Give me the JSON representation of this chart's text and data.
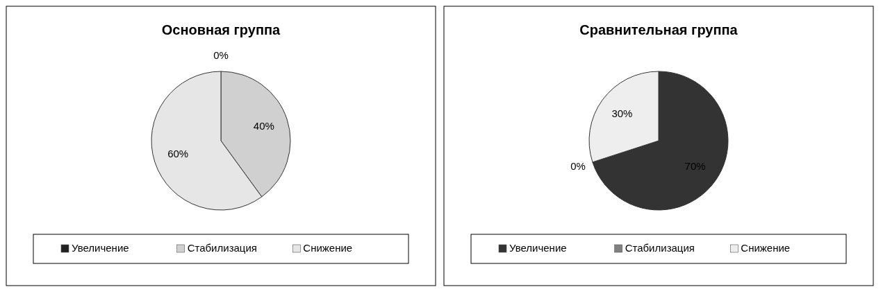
{
  "chart_data": [
    {
      "type": "pie",
      "title": "Основная группа",
      "categories": [
        "Увеличение",
        "Стабилизация",
        "Снижение"
      ],
      "values": [
        0,
        40,
        60
      ],
      "colors": [
        "#222222",
        "#d0d0d0",
        "#e6e6e6"
      ],
      "value_labels": [
        "0%",
        "40%",
        "60%"
      ],
      "legend": "bottom"
    },
    {
      "type": "pie",
      "title": "Сравнительная группа",
      "categories": [
        "Увеличение",
        "Стабилизация",
        "Снижение"
      ],
      "values": [
        70,
        0,
        30
      ],
      "colors": [
        "#333333",
        "#808080",
        "#eeeeee"
      ],
      "value_labels": [
        "70%",
        "0%",
        "30%"
      ],
      "legend": "bottom"
    }
  ]
}
